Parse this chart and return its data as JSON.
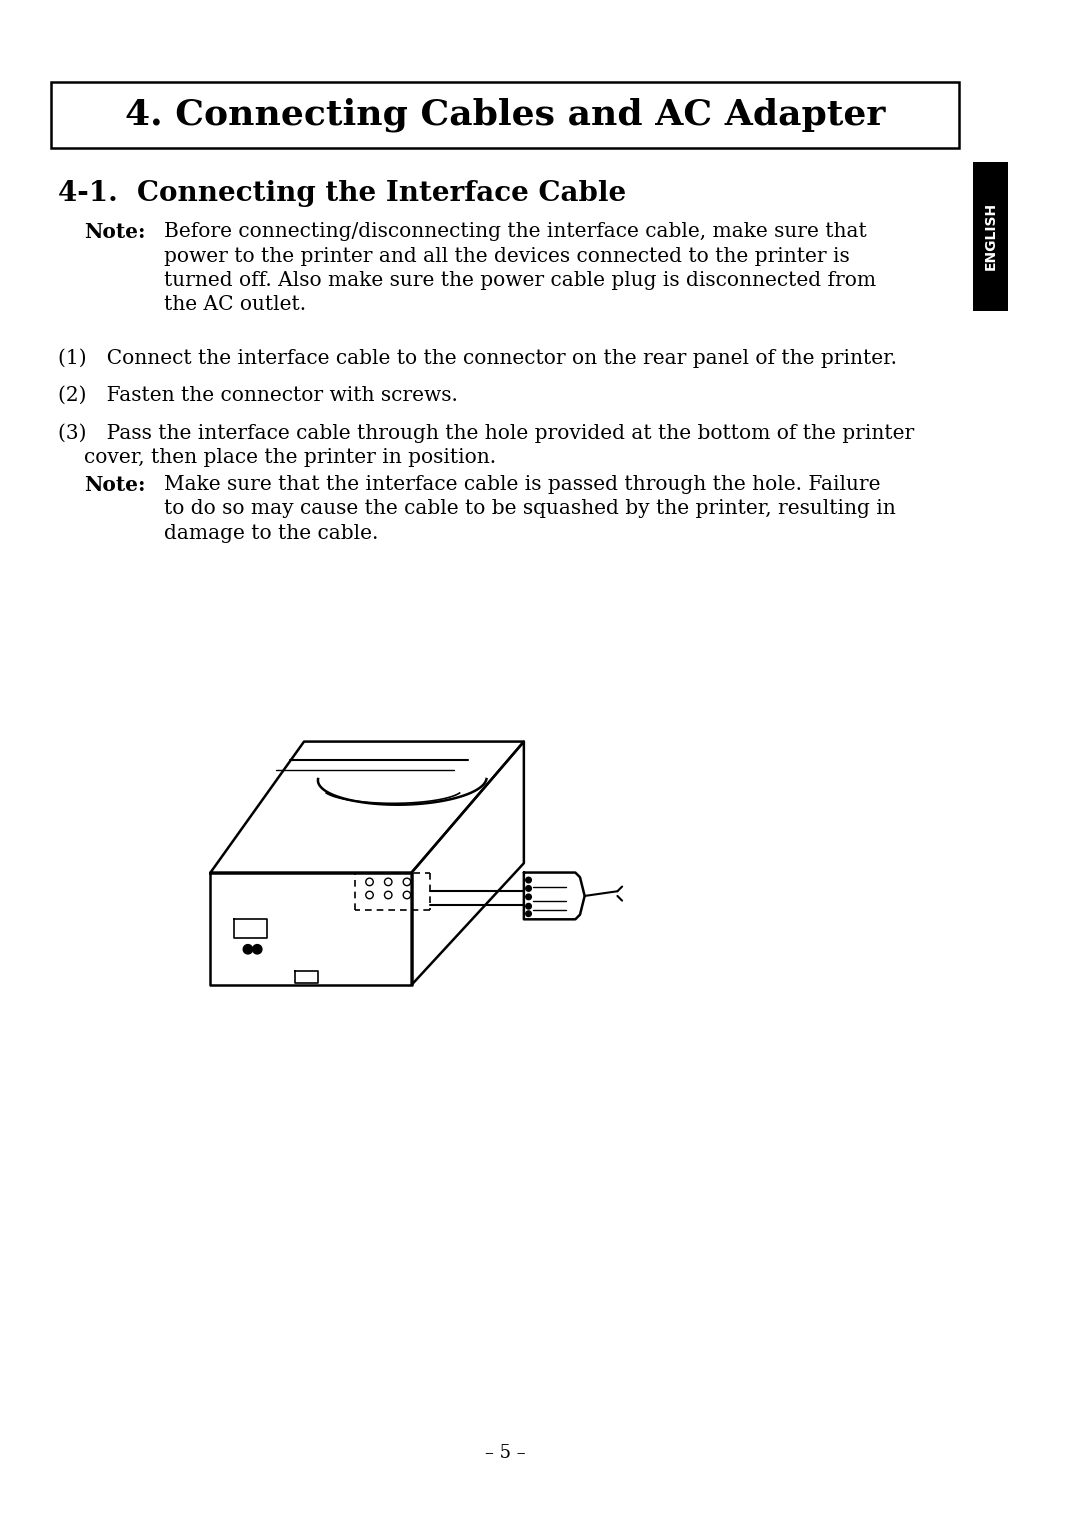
{
  "title": "4. Connecting Cables and AC Adapter",
  "section_title": "4-1.  Connecting the Interface Cable",
  "note1_label": "Note:",
  "note1_text_lines": [
    "Before connecting/disconnecting the interface cable, make sure that",
    "power to the printer and all the devices connected to the printer is",
    "turned off. Also make sure the power cable plug is disconnected from",
    "the AC outlet."
  ],
  "step1": "(1) Connect the interface cable to the connector on the rear panel of the printer.",
  "step2": "(2) Fasten the connector with screws.",
  "step3_line1": "(3) Pass the interface cable through the hole provided at the bottom of the printer",
  "step3_line2": "cover, then place the printer in position.",
  "note2_label": "Note:",
  "note2_text_lines": [
    "Make sure that the interface cable is passed through the hole. Failure",
    "to do so may cause the cable to be squashed by the printer, resulting in",
    "damage to the cable."
  ],
  "footer": "– 5 –",
  "english_tab": "ENGLISH",
  "bg_color": "#ffffff",
  "text_color": "#000000",
  "tab_bg": "#000000",
  "tab_text_color": "#ffffff"
}
